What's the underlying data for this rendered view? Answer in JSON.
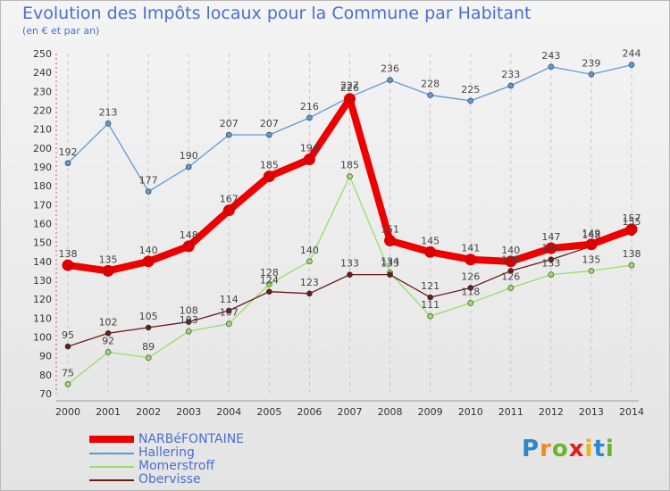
{
  "chart_data": {
    "type": "line",
    "title": "Evolution des Impôts locaux pour la Commune par Habitant",
    "subtitle": "(en € et par an)",
    "x": [
      2000,
      2001,
      2002,
      2003,
      2004,
      2005,
      2006,
      2007,
      2008,
      2009,
      2010,
      2011,
      2012,
      2013,
      2014
    ],
    "ylim": [
      70,
      250
    ],
    "yticks": [
      70,
      80,
      90,
      100,
      110,
      120,
      130,
      140,
      150,
      160,
      170,
      180,
      190,
      200,
      210,
      220,
      230,
      240,
      250
    ],
    "grid": "vertical-dashed",
    "legend_position": "bottom-left",
    "series": [
      {
        "name": "NARBéFONTAINE",
        "color": "#ee0000",
        "values": [
          138,
          135,
          140,
          148,
          167,
          185,
          194,
          226,
          151,
          145,
          141,
          140,
          147,
          149,
          157
        ]
      },
      {
        "name": "Hallering",
        "color": "#5b9bd5",
        "values": [
          192,
          213,
          177,
          190,
          207,
          207,
          216,
          227,
          236,
          228,
          225,
          233,
          243,
          239,
          244
        ]
      },
      {
        "name": "Momerstroff",
        "color": "#99dd66",
        "values": [
          75,
          92,
          89,
          103,
          107,
          128,
          140,
          185,
          134,
          111,
          118,
          126,
          133,
          135,
          138
        ]
      },
      {
        "name": "Obervisse",
        "color": "#6b1a1a",
        "values": [
          95,
          102,
          105,
          108,
          114,
          124,
          123,
          133,
          133,
          121,
          126,
          135,
          141,
          148,
          155
        ]
      }
    ]
  },
  "brand": {
    "letters": [
      "P",
      "r",
      "o",
      "x",
      "i",
      "t",
      "i"
    ],
    "colors": [
      "#2a88d0",
      "#f08a24",
      "#6ab42d",
      "#e01b1b",
      "#f4b400",
      "#2a88d0",
      "#6ab42d"
    ]
  }
}
